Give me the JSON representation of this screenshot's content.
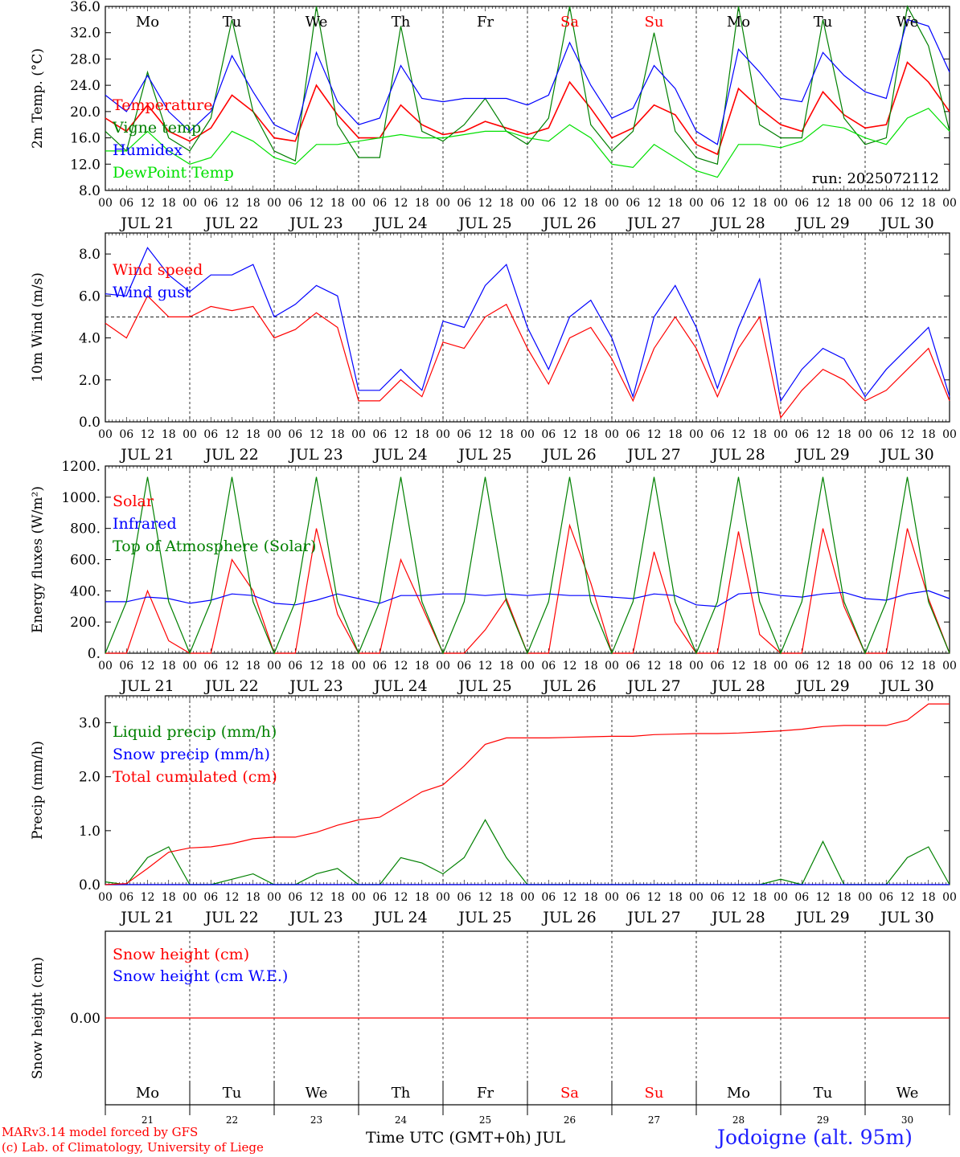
{
  "chart_data": {
    "type": "line",
    "x_axis": {
      "month": "JUL",
      "dates": [
        "JUL 21",
        "JUL 22",
        "JUL 23",
        "JUL 24",
        "JUL 25",
        "JUL 26",
        "JUL 27",
        "JUL 28",
        "JUL 29",
        "JUL 30"
      ],
      "days_of_month": [
        "21",
        "22",
        "23",
        "24",
        "25",
        "26",
        "27",
        "28",
        "29",
        "30"
      ],
      "weekdays": [
        "Mo",
        "Tu",
        "We",
        "Th",
        "Fr",
        "Sa",
        "Su",
        "Mo",
        "Tu",
        "We"
      ],
      "weekend_flags": [
        false,
        false,
        false,
        false,
        false,
        true,
        true,
        false,
        false,
        false
      ],
      "hour_ticks": [
        "00",
        "06",
        "12",
        "18"
      ],
      "final_tick": "00",
      "xlabel": "Time UTC (GMT+0h) JUL",
      "sample_hours": [
        0,
        6,
        12,
        18,
        24,
        30,
        36,
        42,
        48,
        54,
        60,
        66,
        72,
        78,
        84,
        90,
        96,
        102,
        108,
        114,
        120,
        126,
        132,
        138,
        144,
        150,
        156,
        162,
        168,
        174,
        180,
        186,
        192,
        198,
        204,
        210,
        216,
        222,
        228,
        234,
        240
      ]
    },
    "run_label": "run: 2025072112",
    "location": "Jodoigne (alt. 95m)",
    "credits": [
      "MARv3.14 model forced by GFS",
      "(c) Lab. of Climatology, University of Liege"
    ],
    "colors": {
      "red": "#ff0000",
      "blue": "#0000ff",
      "green": "#008000",
      "lightgreen": "#00e000",
      "weekend": "#ff0000"
    },
    "panels": [
      {
        "ylabel": "2m Temp. (°C)",
        "ylim": [
          8,
          36
        ],
        "ticks": [
          "8.0",
          "12.0",
          "16.0",
          "20.0",
          "24.0",
          "28.0",
          "32.0",
          "36.0"
        ],
        "tick_values": [
          8,
          12,
          16,
          20,
          24,
          28,
          32,
          36
        ],
        "show_weekdays": true,
        "series": [
          {
            "name": "Temperature",
            "color": "#ff0000",
            "values": [
              19.0,
              17.0,
              21.0,
              17.0,
              15.5,
              17.5,
              22.5,
              20.0,
              16.0,
              15.5,
              24.0,
              19.5,
              16.0,
              16.0,
              21.0,
              18.0,
              16.5,
              17.0,
              18.5,
              17.5,
              16.5,
              17.5,
              24.5,
              20.5,
              16.0,
              17.5,
              21.0,
              19.5,
              15.0,
              13.5,
              23.5,
              20.5,
              18.0,
              17.0,
              23.0,
              19.5,
              17.5,
              18.0,
              27.5,
              24.5,
              20.0
            ]
          },
          {
            "name": "Vigne temp",
            "color": "#008000",
            "values": [
              17.0,
              14.0,
              26.0,
              16.0,
              14.0,
              19.0,
              34.0,
              20.0,
              14.0,
              12.5,
              36.0,
              18.0,
              13.0,
              13.0,
              33.0,
              17.0,
              15.5,
              18.0,
              22.0,
              17.0,
              15.0,
              19.0,
              36.0,
              18.0,
              14.0,
              17.0,
              32.0,
              17.0,
              13.0,
              12.0,
              36.0,
              18.0,
              16.0,
              16.0,
              34.0,
              19.0,
              15.0,
              16.0,
              36.0,
              30.0,
              17.0
            ]
          },
          {
            "name": "Humidex",
            "color": "#0000ff",
            "values": [
              22.5,
              20.0,
              25.5,
              20.0,
              17.0,
              20.0,
              28.5,
              23.0,
              18.0,
              16.5,
              29.0,
              21.5,
              18.0,
              19.0,
              27.0,
              22.0,
              21.5,
              22.0,
              22.0,
              22.0,
              21.0,
              22.5,
              30.5,
              24.0,
              19.0,
              20.5,
              27.0,
              23.5,
              17.0,
              15.0,
              29.5,
              26.0,
              22.0,
              21.5,
              29.0,
              25.5,
              23.0,
              22.0,
              34.0,
              33.0,
              26.0
            ]
          },
          {
            "name": "DewPoint Temp",
            "color": "#00e000",
            "values": [
              14.0,
              14.0,
              17.0,
              14.0,
              12.0,
              13.0,
              17.0,
              15.5,
              13.0,
              12.0,
              15.0,
              15.0,
              15.5,
              16.0,
              16.5,
              16.0,
              16.0,
              16.5,
              17.0,
              17.0,
              16.0,
              15.5,
              18.0,
              16.0,
              12.0,
              11.5,
              15.0,
              13.0,
              11.0,
              10.0,
              15.0,
              15.0,
              14.5,
              15.5,
              18.0,
              17.5,
              16.0,
              15.0,
              19.0,
              20.5,
              17.0
            ]
          }
        ]
      },
      {
        "ylabel": "10m Wind (m/s)",
        "ylim": [
          0,
          9
        ],
        "ticks": [
          "0.0",
          "2.0",
          "4.0",
          "6.0",
          "8.0"
        ],
        "tick_values": [
          0,
          2,
          4,
          6,
          8
        ],
        "reference_line": 5,
        "show_weekdays": false,
        "series": [
          {
            "name": "Wind speed",
            "color": "#ff0000",
            "values": [
              4.7,
              4.0,
              6.0,
              5.0,
              5.0,
              5.5,
              5.3,
              5.5,
              4.0,
              4.4,
              5.2,
              4.5,
              1.0,
              1.0,
              2.0,
              1.2,
              3.8,
              3.5,
              5.0,
              5.6,
              3.5,
              1.8,
              4.0,
              4.5,
              3.0,
              1.0,
              3.5,
              5.0,
              3.5,
              1.2,
              3.5,
              5.0,
              0.2,
              1.5,
              2.5,
              2.0,
              1.0,
              1.5,
              2.5,
              3.5,
              1.0
            ]
          },
          {
            "name": "Wind gust",
            "color": "#0000ff",
            "values": [
              6.1,
              6.0,
              8.3,
              7.0,
              6.2,
              7.0,
              7.0,
              7.5,
              5.0,
              5.6,
              6.5,
              6.0,
              1.5,
              1.5,
              2.5,
              1.5,
              4.8,
              4.5,
              6.5,
              7.5,
              4.5,
              2.5,
              5.0,
              5.8,
              4.0,
              1.2,
              5.0,
              6.5,
              4.5,
              1.6,
              4.5,
              6.8,
              1.0,
              2.5,
              3.5,
              3.0,
              1.2,
              2.5,
              3.5,
              4.5,
              1.2
            ]
          }
        ]
      },
      {
        "ylabel": "Energy fluxes (W/m²)",
        "ylim": [
          0,
          1200
        ],
        "ticks": [
          "0.",
          "200.",
          "400.",
          "600.",
          "800.",
          "1000.",
          "1200."
        ],
        "tick_values": [
          0,
          200,
          400,
          600,
          800,
          1000,
          1200
        ],
        "show_weekdays": false,
        "series": [
          {
            "name": "Solar",
            "color": "#ff0000",
            "values": [
              0,
              0,
              400,
              80,
              0,
              0,
              600,
              400,
              0,
              0,
              800,
              250,
              0,
              0,
              600,
              300,
              0,
              0,
              150,
              350,
              0,
              0,
              820,
              450,
              0,
              0,
              650,
              200,
              0,
              0,
              780,
              120,
              0,
              0,
              800,
              300,
              0,
              0,
              800,
              350,
              0
            ]
          },
          {
            "name": "Infrared",
            "color": "#0000ff",
            "values": [
              330,
              330,
              360,
              350,
              320,
              340,
              380,
              370,
              320,
              310,
              340,
              380,
              350,
              320,
              370,
              370,
              380,
              380,
              370,
              380,
              370,
              380,
              370,
              370,
              360,
              350,
              380,
              370,
              310,
              300,
              380,
              390,
              370,
              360,
              380,
              390,
              350,
              340,
              380,
              400,
              350
            ]
          },
          {
            "name": "Top of Atmosphere (Solar)",
            "color": "#008000",
            "values": [
              0,
              330,
              1130,
              330,
              0,
              330,
              1130,
              330,
              0,
              330,
              1130,
              330,
              0,
              330,
              1130,
              330,
              0,
              330,
              1130,
              330,
              0,
              330,
              1130,
              330,
              0,
              330,
              1130,
              330,
              0,
              330,
              1130,
              330,
              0,
              330,
              1130,
              330,
              0,
              330,
              1130,
              330,
              0
            ]
          }
        ]
      },
      {
        "ylabel": "Precip (mm/h)",
        "ylim": [
          0,
          3.5
        ],
        "ticks": [
          "0.0",
          "1.0",
          "2.0",
          "3.0"
        ],
        "tick_values": [
          0,
          1,
          2,
          3
        ],
        "show_weekdays": false,
        "series": [
          {
            "name": "Liquid precip (mm/h)",
            "color": "#008000",
            "values": [
              0.05,
              0.0,
              0.5,
              0.7,
              0.0,
              0.0,
              0.1,
              0.2,
              0.0,
              0.0,
              0.2,
              0.3,
              0.0,
              0.0,
              0.5,
              0.4,
              0.2,
              0.5,
              1.2,
              0.5,
              0.0,
              0.0,
              0.0,
              0.0,
              0.0,
              0.0,
              0.0,
              0.0,
              0.0,
              0.0,
              0.0,
              0.0,
              0.1,
              0.0,
              0.8,
              0.0,
              0.0,
              0.0,
              0.5,
              0.7,
              0.0
            ]
          },
          {
            "name": "Snow precip (mm/h)",
            "color": "#0000ff",
            "values": [
              0,
              0,
              0,
              0,
              0,
              0,
              0,
              0,
              0,
              0,
              0,
              0,
              0,
              0,
              0,
              0,
              0,
              0,
              0,
              0,
              0,
              0,
              0,
              0,
              0,
              0,
              0,
              0,
              0,
              0,
              0,
              0,
              0,
              0,
              0,
              0,
              0,
              0,
              0,
              0,
              0
            ]
          },
          {
            "name": "Total cumulated (cm)",
            "color": "#ff0000",
            "values": [
              0.0,
              0.02,
              0.3,
              0.6,
              0.68,
              0.7,
              0.76,
              0.85,
              0.88,
              0.88,
              0.97,
              1.1,
              1.2,
              1.25,
              1.48,
              1.72,
              1.85,
              2.2,
              2.6,
              2.72,
              2.72,
              2.72,
              2.73,
              2.74,
              2.75,
              2.75,
              2.78,
              2.79,
              2.8,
              2.8,
              2.81,
              2.83,
              2.85,
              2.88,
              2.93,
              2.95,
              2.95,
              2.95,
              3.05,
              3.35,
              3.35
            ]
          }
        ]
      },
      {
        "ylabel": "Snow height (cm)",
        "ylim": [
          -1,
          1
        ],
        "ticks": [
          "0.00"
        ],
        "tick_values": [
          0
        ],
        "show_weekdays": false,
        "series": [
          {
            "name": "Snow height (cm)",
            "color": "#ff0000",
            "values": [
              0,
              0,
              0,
              0,
              0,
              0,
              0,
              0,
              0,
              0,
              0,
              0,
              0,
              0,
              0,
              0,
              0,
              0,
              0,
              0,
              0,
              0,
              0,
              0,
              0,
              0,
              0,
              0,
              0,
              0,
              0,
              0,
              0,
              0,
              0,
              0,
              0,
              0,
              0,
              0,
              0
            ]
          },
          {
            "name": "Snow height (cm W.E.)",
            "color": "#0000ff",
            "values": []
          }
        ]
      }
    ]
  }
}
